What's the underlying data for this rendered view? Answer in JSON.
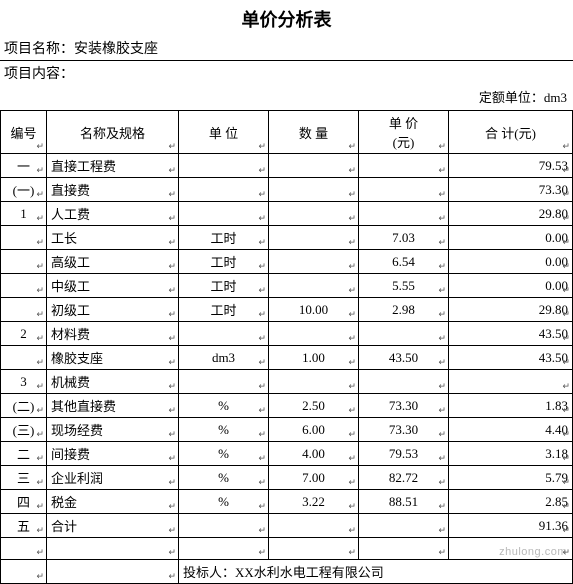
{
  "title": "单价分析表",
  "meta": {
    "project_label": "项目名称：",
    "project_value": "安装橡胶支座",
    "content_label": "项目内容：",
    "unit_label": "定额单位：",
    "unit_value": "dm3"
  },
  "columns": {
    "no": "编号",
    "name": "名称及规格",
    "unit": "单    位",
    "qty": "数    量",
    "price": "单    价\n(元)",
    "price_l1": "单    价",
    "price_l2": "(元)",
    "total": "合    计(元)"
  },
  "rows": [
    {
      "no": "一",
      "name": "直接工程费",
      "unit": "",
      "qty": "",
      "price": "",
      "total": "79.53"
    },
    {
      "no": "(一)",
      "name": "直接费",
      "unit": "",
      "qty": "",
      "price": "",
      "total": "73.30"
    },
    {
      "no": "1",
      "name": "人工费",
      "unit": "",
      "qty": "",
      "price": "",
      "total": "29.80"
    },
    {
      "no": "",
      "name": "工长",
      "unit": "工时",
      "qty": "",
      "price": "7.03",
      "total": "0.00"
    },
    {
      "no": "",
      "name": "高级工",
      "unit": "工时",
      "qty": "",
      "price": "6.54",
      "total": "0.00"
    },
    {
      "no": "",
      "name": "中级工",
      "unit": "工时",
      "qty": "",
      "price": "5.55",
      "total": "0.00"
    },
    {
      "no": "",
      "name": "初级工",
      "unit": "工时",
      "qty": "10.00",
      "price": "2.98",
      "total": "29.80"
    },
    {
      "no": "2",
      "name": "材料费",
      "unit": "",
      "qty": "",
      "price": "",
      "total": "43.50"
    },
    {
      "no": "",
      "name": "橡胶支座",
      "unit": "dm3",
      "qty": "1.00",
      "price": "43.50",
      "total": "43.50"
    },
    {
      "no": "3",
      "name": "机械费",
      "unit": "",
      "qty": "",
      "price": "",
      "total": ""
    },
    {
      "no": "(二)",
      "name": "其他直接费",
      "unit": "%",
      "qty": "2.50",
      "price": "73.30",
      "total": "1.83"
    },
    {
      "no": "(三)",
      "name": "现场经费",
      "unit": "%",
      "qty": "6.00",
      "price": "73.30",
      "total": "4.40"
    },
    {
      "no": "二",
      "name": "间接费",
      "unit": "%",
      "qty": "4.00",
      "price": "79.53",
      "total": "3.18"
    },
    {
      "no": "三",
      "name": "企业利润",
      "unit": "%",
      "qty": "7.00",
      "price": "82.72",
      "total": "5.79"
    },
    {
      "no": "四",
      "name": "税金",
      "unit": "%",
      "qty": "3.22",
      "price": "88.51",
      "total": "2.85"
    },
    {
      "no": "五",
      "name": "合计",
      "unit": "",
      "qty": "",
      "price": "",
      "total": "91.36"
    }
  ],
  "footer": {
    "bidder_label": "投标人：",
    "bidder_value": "XX水利水电工程有限公司"
  },
  "watermark": "zhulong.com",
  "style": {
    "enter_mark": "↵",
    "colors": {
      "border": "#000000",
      "text": "#000000",
      "bg": "#ffffff",
      "mark": "#555555",
      "watermark": "rgba(100,100,100,0.45)"
    }
  }
}
